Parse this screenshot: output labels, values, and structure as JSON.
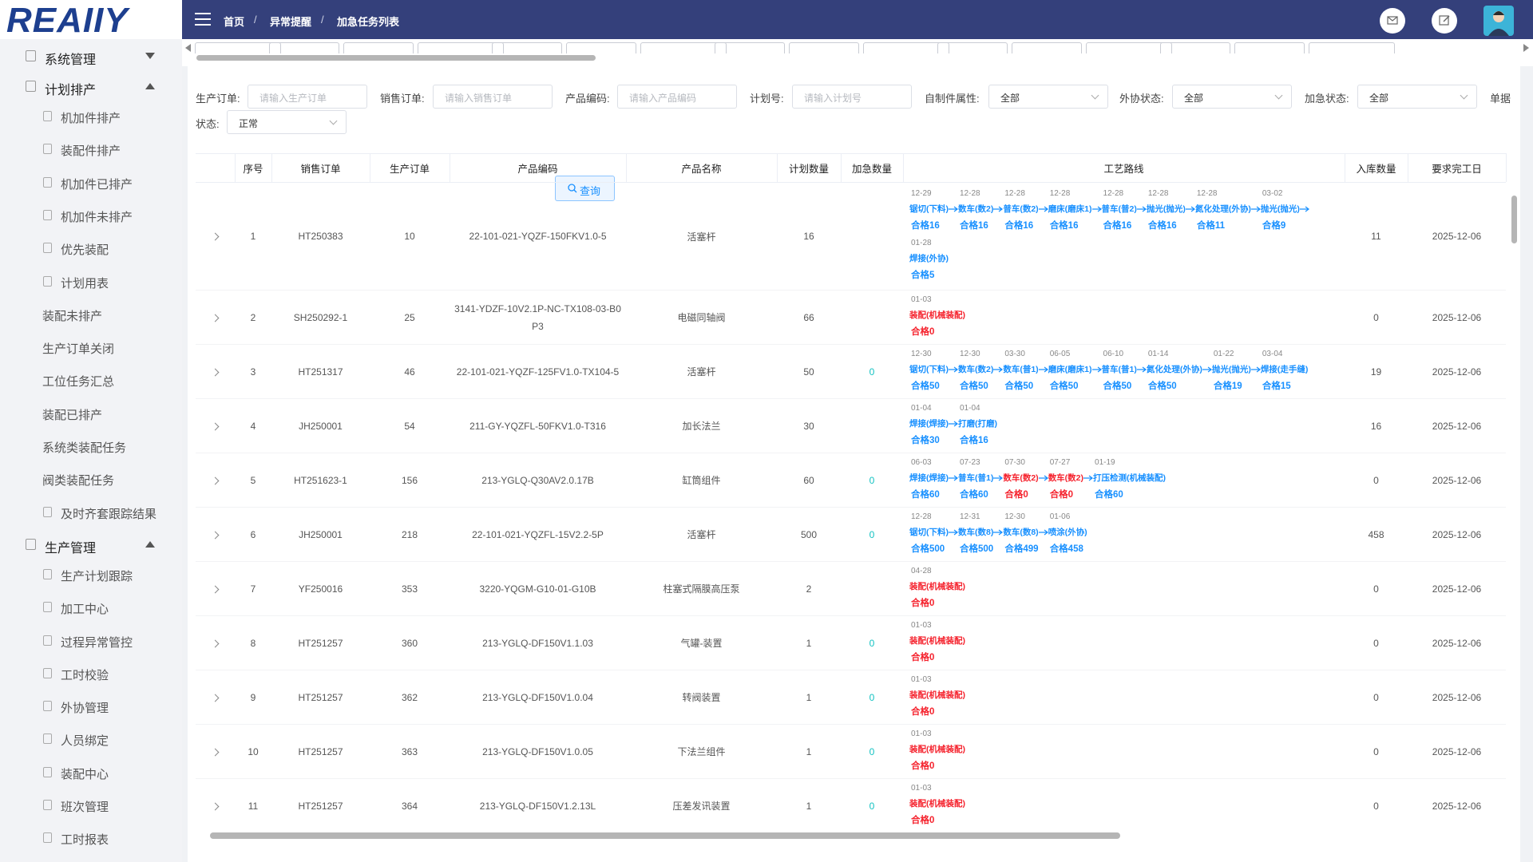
{
  "sidebar": {
    "logo": "REAIIY",
    "menu": [
      {
        "label": "系统管理",
        "children": []
      },
      {
        "label": "计划排产",
        "children": [
          "机加件排产",
          "装配件排产",
          "机加件已排产",
          "机加件未排产",
          "优先装配",
          "计划用表",
          "装配未排产",
          "生产订单关闭",
          "工位任务汇总",
          "装配已排产",
          "系统类装配任务",
          "阀类装配任务",
          "及时齐套跟踪结果"
        ]
      },
      {
        "label": "生产管理",
        "children": [
          "生产计划跟踪",
          "加工中心",
          "过程异常管控",
          "工时校验",
          "外协管理",
          "人员绑定",
          "装配中心",
          "班次管理",
          "工时报表"
        ]
      }
    ]
  },
  "header": {
    "breadcrumb": [
      "首页",
      "异常提醒",
      "加急任务列表"
    ]
  },
  "filters": [
    {
      "label": "生产订单:",
      "placeholder": "请输入生产订单"
    },
    {
      "label": "销售订单:",
      "placeholder": "请输入销售订单"
    },
    {
      "label": "产品编码:",
      "placeholder": "请输入产品编码"
    },
    {
      "label": "计划号:",
      "placeholder": "请输入计划号"
    },
    {
      "label": "自制件属性:",
      "value": "全部"
    },
    {
      "label": "外协状态:",
      "value": "全部"
    },
    {
      "label": "加急状态:",
      "value": "全部"
    },
    {
      "label": "单据"
    },
    {
      "label": "状态:",
      "value": "正常"
    }
  ],
  "search_button": "查询",
  "table": {
    "columns": [
      "序号",
      "销售订单",
      "生产订单",
      "产品编码",
      "产品名称",
      "计划数量",
      "加急数量",
      "工艺路线",
      "入库数量",
      "要求完工日"
    ],
    "rows": [
      {
        "no": 1,
        "sales_order": "HT250383",
        "production_order": 10,
        "product_code": "22-101-021-YQZF-150FKV1.0-5",
        "product_name": "活塞杆",
        "planned_qty": 16,
        "urgent_qty": null,
        "route": [
          {
            "date": "12-29",
            "step": "锯切(下料)",
            "qualified": "合格16",
            "color": "#1890ff"
          },
          {
            "date": "12-28",
            "step": "数车(数2)",
            "qualified": "合格16",
            "color": "#1890ff"
          },
          {
            "date": "12-28",
            "step": "普车(数2)",
            "qualified": "合格16",
            "color": "#1890ff"
          },
          {
            "date": "12-28",
            "step": "磨床(磨床1)",
            "qualified": "合格16",
            "color": "#1890ff"
          },
          {
            "date": "12-28",
            "step": "普车(普2)",
            "qualified": "合格16",
            "color": "#1890ff"
          },
          {
            "date": "12-28",
            "step": "抛光(抛光)",
            "qualified": "合格16",
            "color": "#1890ff"
          },
          {
            "date": "12-28",
            "step": "氮化处理(外协)",
            "qualified": "合格11",
            "color": "#1890ff"
          },
          {
            "date": "03-02",
            "step": "抛光(抛光)",
            "qualified": "合格9",
            "color": "#1890ff"
          },
          {
            "date": "01-28",
            "step": "焊接(外协)",
            "qualified": "合格5",
            "color": "#1890ff"
          }
        ],
        "stored_qty": 11,
        "due_date": "2025-12-06"
      },
      {
        "no": 2,
        "sales_order": "SH250292-1",
        "production_order": 25,
        "product_code": "3141-YDZF-10V2.1P-NC-TX108-03-B0P3",
        "product_name": "电磁同轴阀",
        "planned_qty": 66,
        "urgent_qty": null,
        "route": [
          {
            "date": "01-03",
            "step": "装配(机械装配)",
            "qualified": "合格0",
            "color": "#f5222d"
          }
        ],
        "stored_qty": 0,
        "due_date": "2025-12-06"
      },
      {
        "no": 3,
        "sales_order": "HT251317",
        "production_order": 46,
        "product_code": "22-101-021-YQZF-125FV1.0-TX104-5",
        "product_name": "活塞杆",
        "planned_qty": 50,
        "urgent_qty": 0,
        "route": [
          {
            "date": "12-30",
            "step": "锯切(下料)",
            "qualified": "合格50",
            "color": "#1890ff"
          },
          {
            "date": "12-30",
            "step": "数车(数2)",
            "qualified": "合格50",
            "color": "#1890ff"
          },
          {
            "date": "03-30",
            "step": "数车(普1)",
            "qualified": "合格50",
            "color": "#1890ff"
          },
          {
            "date": "06-05",
            "step": "磨床(磨床1)",
            "qualified": "合格50",
            "color": "#1890ff"
          },
          {
            "date": "06-10",
            "step": "普车(普1)",
            "qualified": "合格50",
            "color": "#1890ff"
          },
          {
            "date": "01-14",
            "step": "氮化处理(外协)",
            "qualified": "合格50",
            "color": "#1890ff"
          },
          {
            "date": "01-22",
            "step": "抛光(抛光)",
            "qualified": "合格19",
            "color": "#1890ff"
          },
          {
            "date": "03-04",
            "step": "焊接(走手缝)",
            "qualified": "合格15",
            "color": "#1890ff"
          }
        ],
        "stored_qty": 19,
        "due_date": "2025-12-06"
      },
      {
        "no": 4,
        "sales_order": "JH250001",
        "production_order": 54,
        "product_code": "211-GY-YQZFL-50FKV1.0-T316",
        "product_name": "加长法兰",
        "planned_qty": 30,
        "urgent_qty": null,
        "route": [
          {
            "date": "01-04",
            "step": "焊接(焊接)",
            "qualified": "合格30",
            "color": "#1890ff"
          },
          {
            "date": "01-04",
            "step": "打磨(打磨)",
            "qualified": "合格16",
            "color": "#1890ff"
          }
        ],
        "stored_qty": 16,
        "due_date": "2025-12-06"
      },
      {
        "no": 5,
        "sales_order": "HT251623-1",
        "production_order": 156,
        "product_code": "213-YGLQ-Q30AV2.0.17B",
        "product_name": "缸筒组件",
        "planned_qty": 60,
        "urgent_qty": 0,
        "route": [
          {
            "date": "06-03",
            "step": "焊接(焊接)",
            "qualified": "合格60",
            "color": "#1890ff"
          },
          {
            "date": "07-23",
            "step": "普车(普1)",
            "qualified": "合格60",
            "color": "#1890ff"
          },
          {
            "date": "07-30",
            "step": "数车(数2)",
            "qualified": "合格0",
            "color": "#f5222d"
          },
          {
            "date": "07-27",
            "step": "数车(数2)",
            "qualified": "合格0",
            "color": "#f5222d"
          },
          {
            "date": "01-19",
            "step": "打压检测(机械装配)",
            "qualified": "合格60",
            "color": "#1890ff"
          }
        ],
        "stored_qty": 0,
        "due_date": "2025-12-06"
      },
      {
        "no": 6,
        "sales_order": "JH250001",
        "production_order": 218,
        "product_code": "22-101-021-YQZFL-15V2.2-5P",
        "product_name": "活塞杆",
        "planned_qty": 500,
        "urgent_qty": 0,
        "route": [
          {
            "date": "12-28",
            "step": "锯切(下料)",
            "qualified": "合格500",
            "color": "#1890ff"
          },
          {
            "date": "12-31",
            "step": "数车(数8)",
            "qualified": "合格500",
            "color": "#1890ff"
          },
          {
            "date": "12-30",
            "step": "数车(数8)",
            "qualified": "合格499",
            "color": "#1890ff"
          },
          {
            "date": "01-06",
            "step": "喷涂(外协)",
            "qualified": "合格458",
            "color": "#1890ff"
          }
        ],
        "stored_qty": 458,
        "due_date": "2025-12-06"
      },
      {
        "no": 7,
        "sales_order": "YF250016",
        "production_order": 353,
        "product_code": "3220-YQGM-G10-01-G10B",
        "product_name": "柱塞式隔膜高压泵",
        "planned_qty": 2,
        "urgent_qty": null,
        "route": [
          {
            "date": "04-28",
            "step": "装配(机械装配)",
            "qualified": "合格0",
            "color": "#f5222d"
          }
        ],
        "stored_qty": 0,
        "due_date": "2025-12-06"
      },
      {
        "no": 8,
        "sales_order": "HT251257",
        "production_order": 360,
        "product_code": "213-YGLQ-DF150V1.1.03",
        "product_name": "气罐-装置",
        "planned_qty": 1,
        "urgent_qty": 0,
        "route": [
          {
            "date": "01-03",
            "step": "装配(机械装配)",
            "qualified": "合格0",
            "color": "#f5222d"
          }
        ],
        "stored_qty": 0,
        "due_date": "2025-12-06"
      },
      {
        "no": 9,
        "sales_order": "HT251257",
        "production_order": 362,
        "product_code": "213-YGLQ-DF150V1.0.04",
        "product_name": "转阀装置",
        "planned_qty": 1,
        "urgent_qty": 0,
        "route": [
          {
            "date": "01-03",
            "step": "装配(机械装配)",
            "qualified": "合格0",
            "color": "#f5222d"
          }
        ],
        "stored_qty": 0,
        "due_date": "2025-12-06"
      },
      {
        "no": 10,
        "sales_order": "HT251257",
        "production_order": 363,
        "product_code": "213-YGLQ-DF150V1.0.05",
        "product_name": "下法兰组件",
        "planned_qty": 1,
        "urgent_qty": 0,
        "route": [
          {
            "date": "01-03",
            "step": "装配(机械装配)",
            "qualified": "合格0",
            "color": "#f5222d"
          }
        ],
        "stored_qty": 0,
        "due_date": "2025-12-06"
      },
      {
        "no": 11,
        "sales_order": "HT251257",
        "production_order": 364,
        "product_code": "213-YGLQ-DF150V1.2.13L",
        "product_name": "压差发讯装置",
        "planned_qty": 1,
        "urgent_qty": 0,
        "route": [
          {
            "date": "01-03",
            "step": "装配(机械装配)",
            "qualified": "合格0",
            "color": "#f5222d"
          }
        ],
        "stored_qty": 0,
        "due_date": "2025-12-06"
      }
    ]
  }
}
